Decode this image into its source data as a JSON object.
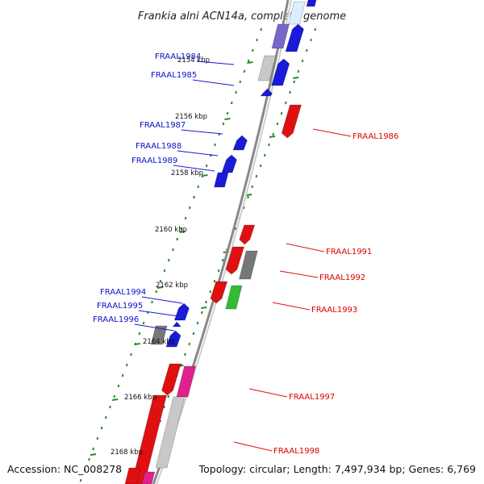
{
  "title": "Frankia alni ACN14a, complete genome",
  "footer": {
    "accession": "Accession: NC_008278",
    "summary": "Topology: circular; Length: 7,497,934 bp; Genes: 6,769"
  },
  "colors": {
    "plus_strand": "#1a1ad8",
    "minus_strand": "#e01010",
    "backbone": "#555555",
    "ruler": "#2a8a2a",
    "gene_grey": "#777777",
    "gene_light": "#c8c8c8",
    "gene_pink": "#e0208c",
    "gene_green": "#33bb33",
    "gene_purple": "#7766cc"
  },
  "ticks": [
    {
      "label": "2154 kbp"
    },
    {
      "label": "2156 kbp"
    },
    {
      "label": "2158 kbp"
    },
    {
      "label": "2160 kbp"
    },
    {
      "label": "2162 kbp"
    },
    {
      "label": "2164 kbp"
    },
    {
      "label": "2166 kbp"
    },
    {
      "label": "2168 kbp"
    }
  ],
  "labels": [
    {
      "text": "FRAAL1984",
      "strand": "plus"
    },
    {
      "text": "FRAAL1985",
      "strand": "plus"
    },
    {
      "text": "FRAAL1987",
      "strand": "plus"
    },
    {
      "text": "FRAAL1988",
      "strand": "plus"
    },
    {
      "text": "FRAAL1989",
      "strand": "plus"
    },
    {
      "text": "FRAAL1994",
      "strand": "plus"
    },
    {
      "text": "FRAAL1995",
      "strand": "plus"
    },
    {
      "text": "FRAAL1996",
      "strand": "plus"
    },
    {
      "text": "FRAAL1986",
      "strand": "minus"
    },
    {
      "text": "FRAAL1991",
      "strand": "minus"
    },
    {
      "text": "FRAAL1992",
      "strand": "minus"
    },
    {
      "text": "FRAAL1993",
      "strand": "minus"
    },
    {
      "text": "FRAAL1997",
      "strand": "minus"
    },
    {
      "text": "FRAAL1998",
      "strand": "minus"
    }
  ]
}
